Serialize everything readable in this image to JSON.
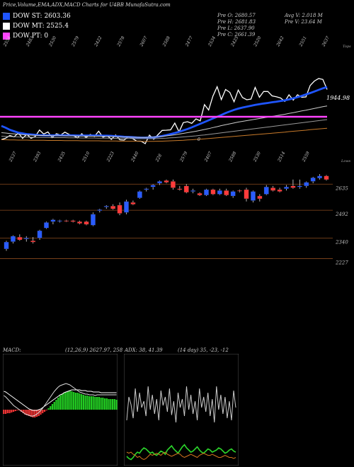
{
  "header": {
    "title": "Price,Volume,EMA,ADX,MACD Charts for U4BB MunafaSutra.com",
    "legend": [
      {
        "label": "DOW ST: 2603.36",
        "color": "#1f55ff"
      },
      {
        "label": "DOW MT: 2525.4",
        "color": "#ffffff"
      },
      {
        "label": "DOW PT: 0",
        "color": "#ff44ff"
      }
    ],
    "stats_left": [
      "Pre O: 2680.57",
      "Pre H: 2681.83",
      "Pre L: 2637.90",
      "Pre C: 2661.39"
    ],
    "stats_right": [
      "Avg V: 2.018 M",
      "Pre V: 23.64 M"
    ]
  },
  "chart_data": [
    {
      "type": "line",
      "panel": "price-ema",
      "right_label": "1944.98",
      "top_tag": "Tops",
      "bottom_tag": "Lows",
      "zero_label": "0",
      "top_tick_labels": [
        "2554",
        "2483",
        "2530",
        "2579",
        "2422",
        "2578",
        "2607",
        "2588",
        "2477",
        "2534",
        "2425",
        "2520",
        "2642",
        "2551",
        "2637"
      ],
      "bottom_tick_labels": [
        "2537",
        "2393",
        "2435",
        "2510",
        "2223",
        "2440",
        "228",
        "2579",
        "2407",
        "2588",
        "2530",
        "2514",
        "2559"
      ],
      "series": [
        {
          "name": "",
          "color": "#ffffff",
          "values": [
            2461,
            2469,
            2484,
            2476,
            2499,
            2468,
            2491,
            2468,
            2479,
            2515,
            2492,
            2504,
            2472,
            2494,
            2486,
            2503,
            2490,
            2483,
            2471,
            2494,
            2473,
            2490,
            2479,
            2508,
            2474,
            2483,
            2462,
            2487,
            2460,
            2458,
            2476,
            2467,
            2452,
            2452,
            2438,
            2486,
            2463,
            2488,
            2513,
            2514,
            2516,
            2554,
            2505,
            2557,
            2562,
            2553,
            2578,
            2567,
            2659,
            2628,
            2707,
            2760,
            2687,
            2744,
            2728,
            2675,
            2741,
            2699,
            2686,
            2690,
            2756,
            2700,
            2733,
            2733,
            2708,
            2703,
            2696,
            2677,
            2714,
            2684,
            2714,
            2700,
            2702,
            2767,
            2792,
            2806,
            2801,
            2744
          ]
        },
        {
          "name": "",
          "color": "#1f55ff",
          "values": [
            2538,
            2528,
            2516,
            2508,
            2500,
            2496,
            2492,
            2490,
            2488,
            2486,
            2485,
            2485,
            2485,
            2485,
            2485,
            2485,
            2485,
            2485,
            2484,
            2484,
            2484,
            2484,
            2484,
            2484,
            2483,
            2483,
            2482,
            2480,
            2479,
            2477,
            2476,
            2475,
            2473,
            2472,
            2472,
            2473,
            2474,
            2477,
            2481,
            2486,
            2492,
            2498,
            2505,
            2513,
            2521,
            2530,
            2540,
            2550,
            2560,
            2570,
            2580,
            2590,
            2600,
            2611,
            2620,
            2629,
            2636,
            2642,
            2647,
            2652,
            2657,
            2661,
            2665,
            2668,
            2672,
            2675,
            2679,
            2683,
            2688,
            2694,
            2701,
            2708,
            2716,
            2724,
            2733,
            2742,
            2751,
            2758
          ]
        },
        {
          "name": "",
          "color": "#cccccc",
          "values": [
            2500,
            2498,
            2495,
            2493,
            2491,
            2489,
            2487,
            2486,
            2485,
            2484,
            2484,
            2484,
            2483,
            2483,
            2483,
            2482,
            2482,
            2482,
            2481,
            2481,
            2481,
            2480,
            2480,
            2480,
            2479,
            2479,
            2478,
            2477,
            2476,
            2475,
            2475,
            2474,
            2474,
            2473,
            2473,
            2474,
            2475,
            2477,
            2479,
            2482,
            2485,
            2488,
            2492,
            2496,
            2500,
            2504,
            2508,
            2513,
            2518,
            2523,
            2529,
            2534,
            2540,
            2545,
            2550,
            2555,
            2560,
            2564,
            2568,
            2572,
            2576,
            2580,
            2584,
            2588,
            2592,
            2596,
            2600,
            2604,
            2609,
            2613,
            2618,
            2623,
            2627,
            2632,
            2637,
            2642,
            2647,
            2651
          ]
        },
        {
          "name": "",
          "color": "#999999",
          "values": [
            2480,
            2479,
            2478,
            2477,
            2476,
            2475,
            2475,
            2474,
            2474,
            2473,
            2473,
            2473,
            2472,
            2472,
            2472,
            2472,
            2471,
            2471,
            2471,
            2470,
            2470,
            2470,
            2470,
            2469,
            2469,
            2469,
            2468,
            2468,
            2468,
            2467,
            2467,
            2467,
            2466,
            2466,
            2466,
            2466,
            2466,
            2467,
            2468,
            2469,
            2471,
            2472,
            2474,
            2476,
            2478,
            2480,
            2482,
            2485,
            2487,
            2490,
            2493,
            2496,
            2499,
            2502,
            2505,
            2508,
            2511,
            2514,
            2517,
            2520,
            2523,
            2526,
            2529,
            2532,
            2535,
            2538,
            2541,
            2544,
            2547,
            2550,
            2553,
            2556,
            2559,
            2562,
            2565,
            2568,
            2571,
            2574
          ]
        },
        {
          "name": "",
          "color": "#c87a2a",
          "values": [
            2460,
            2460,
            2459,
            2459,
            2458,
            2458,
            2458,
            2457,
            2457,
            2457,
            2457,
            2456,
            2456,
            2456,
            2456,
            2455,
            2455,
            2455,
            2455,
            2454,
            2454,
            2454,
            2454,
            2454,
            2453,
            2453,
            2453,
            2453,
            2452,
            2452,
            2452,
            2452,
            2452,
            2451,
            2451,
            2451,
            2451,
            2452,
            2452,
            2453,
            2454,
            2455,
            2456,
            2457,
            2459,
            2460,
            2462,
            2463,
            2465,
            2467,
            2469,
            2471,
            2473,
            2475,
            2477,
            2479,
            2481,
            2483,
            2485,
            2487,
            2489,
            2491,
            2493,
            2495,
            2497,
            2499,
            2501,
            2503,
            2506,
            2508,
            2510,
            2512,
            2514,
            2517,
            2519,
            2521,
            2523,
            2525
          ]
        }
      ],
      "hline": {
        "name": "",
        "color": "#ff44ff",
        "value": 2590
      }
    },
    {
      "type": "candlestick",
      "panel": "candles",
      "level_labels": [
        "2635",
        "2492",
        "2340",
        "2227"
      ],
      "levels": [
        2635,
        2492,
        2340,
        2227
      ],
      "ylim": [
        2140,
        2760
      ],
      "up_color": "#2a5cff",
      "down_color": "#ff3b3b",
      "candles": [
        {
          "o": 2280,
          "h": 2325,
          "l": 2270,
          "c": 2318
        },
        {
          "o": 2320,
          "h": 2355,
          "l": 2310,
          "c": 2350
        },
        {
          "o": 2345,
          "h": 2360,
          "l": 2325,
          "c": 2330
        },
        {
          "o": 2335,
          "h": 2350,
          "l": 2320,
          "c": 2340
        },
        {
          "o": 2325,
          "h": 2345,
          "l": 2310,
          "c": 2318
        },
        {
          "o": 2340,
          "h": 2385,
          "l": 2330,
          "c": 2380
        },
        {
          "o": 2395,
          "h": 2430,
          "l": 2390,
          "c": 2425
        },
        {
          "o": 2430,
          "h": 2445,
          "l": 2415,
          "c": 2440
        },
        {
          "o": 2432,
          "h": 2440,
          "l": 2425,
          "c": 2435
        },
        {
          "o": 2435,
          "h": 2440,
          "l": 2428,
          "c": 2432
        },
        {
          "o": 2435,
          "h": 2440,
          "l": 2425,
          "c": 2430
        },
        {
          "o": 2430,
          "h": 2435,
          "l": 2415,
          "c": 2420
        },
        {
          "o": 2430,
          "h": 2435,
          "l": 2410,
          "c": 2415
        },
        {
          "o": 2410,
          "h": 2480,
          "l": 2405,
          "c": 2470
        },
        {
          "o": 2490,
          "h": 2500,
          "l": 2480,
          "c": 2495
        },
        {
          "o": 2510,
          "h": 2520,
          "l": 2500,
          "c": 2515
        },
        {
          "o": 2515,
          "h": 2525,
          "l": 2495,
          "c": 2500
        },
        {
          "o": 2520,
          "h": 2535,
          "l": 2465,
          "c": 2475
        },
        {
          "o": 2480,
          "h": 2550,
          "l": 2470,
          "c": 2540
        },
        {
          "o": 2535,
          "h": 2545,
          "l": 2520,
          "c": 2525
        },
        {
          "o": 2560,
          "h": 2600,
          "l": 2555,
          "c": 2595
        },
        {
          "o": 2605,
          "h": 2615,
          "l": 2595,
          "c": 2610
        },
        {
          "o": 2620,
          "h": 2635,
          "l": 2605,
          "c": 2630
        },
        {
          "o": 2640,
          "h": 2655,
          "l": 2630,
          "c": 2650
        },
        {
          "o": 2655,
          "h": 2660,
          "l": 2640,
          "c": 2645
        },
        {
          "o": 2650,
          "h": 2660,
          "l": 2605,
          "c": 2615
        },
        {
          "o": 2610,
          "h": 2625,
          "l": 2600,
          "c": 2605
        },
        {
          "o": 2625,
          "h": 2635,
          "l": 2585,
          "c": 2590
        },
        {
          "o": 2595,
          "h": 2610,
          "l": 2585,
          "c": 2600
        },
        {
          "o": 2585,
          "h": 2590,
          "l": 2570,
          "c": 2575
        },
        {
          "o": 2575,
          "h": 2610,
          "l": 2570,
          "c": 2605
        },
        {
          "o": 2605,
          "h": 2610,
          "l": 2575,
          "c": 2580
        },
        {
          "o": 2580,
          "h": 2610,
          "l": 2575,
          "c": 2600
        },
        {
          "o": 2600,
          "h": 2610,
          "l": 2570,
          "c": 2575
        },
        {
          "o": 2570,
          "h": 2600,
          "l": 2560,
          "c": 2595
        },
        {
          "o": 2600,
          "h": 2605,
          "l": 2590,
          "c": 2598
        },
        {
          "o": 2605,
          "h": 2615,
          "l": 2540,
          "c": 2555
        },
        {
          "o": 2545,
          "h": 2600,
          "l": 2535,
          "c": 2595
        },
        {
          "o": 2570,
          "h": 2580,
          "l": 2540,
          "c": 2555
        },
        {
          "o": 2580,
          "h": 2630,
          "l": 2575,
          "c": 2620
        },
        {
          "o": 2615,
          "h": 2625,
          "l": 2595,
          "c": 2600
        },
        {
          "o": 2605,
          "h": 2615,
          "l": 2590,
          "c": 2595
        },
        {
          "o": 2610,
          "h": 2630,
          "l": 2600,
          "c": 2620
        },
        {
          "o": 2625,
          "h": 2660,
          "l": 2610,
          "c": 2615
        },
        {
          "o": 2620,
          "h": 2660,
          "l": 2610,
          "c": 2625
        },
        {
          "o": 2625,
          "h": 2650,
          "l": 2615,
          "c": 2645
        },
        {
          "o": 2650,
          "h": 2675,
          "l": 2640,
          "c": 2670
        },
        {
          "o": 2668,
          "h": 2690,
          "l": 2660,
          "c": 2680
        },
        {
          "o": 2680,
          "h": 2685,
          "l": 2655,
          "c": 2660
        }
      ]
    },
    {
      "type": "bar",
      "panel": "macd",
      "title_left": "MACD:",
      "title_right": "(12,26,9) 2627.97, 258",
      "histogram": [
        -6,
        -6,
        -5,
        -5,
        -4,
        -3,
        -2,
        -1,
        -1,
        -3,
        -5,
        -7,
        -8,
        -9,
        -10,
        -11,
        -11,
        -10,
        -9,
        -7,
        -5,
        -3,
        -1,
        2,
        5,
        8,
        11,
        14,
        17,
        20,
        22,
        24,
        25,
        26,
        27,
        26,
        25,
        24,
        24,
        23,
        22,
        21,
        20,
        20,
        19,
        19,
        19,
        18,
        18,
        18,
        17,
        17,
        16,
        16,
        15,
        15,
        15,
        15,
        14
      ],
      "macd_line": [
        20,
        18,
        15,
        12,
        9,
        6,
        4,
        2,
        0,
        -2,
        -4,
        -6,
        -7,
        -8,
        -9,
        -9,
        -8,
        -6,
        -4,
        -1,
        2,
        6,
        10,
        14,
        18,
        22,
        26,
        29,
        32,
        34,
        35,
        36,
        37,
        36,
        35,
        33,
        31,
        29,
        27,
        25,
        24,
        23,
        22,
        22,
        21,
        21,
        21,
        20,
        21,
        21,
        21,
        21,
        21,
        21,
        21,
        21,
        21,
        21,
        21
      ],
      "signal_line": [
        26,
        25,
        23,
        21,
        19,
        17,
        15,
        13,
        11,
        9,
        7,
        5,
        3,
        1,
        0,
        -1,
        -1,
        -1,
        0,
        1,
        3,
        5,
        7,
        9,
        11,
        13,
        15,
        17,
        19,
        21,
        22,
        24,
        25,
        26,
        27,
        28,
        28,
        28,
        28,
        28,
        27,
        27,
        27,
        26,
        26,
        26,
        25,
        25,
        25,
        25,
        24,
        24,
        24,
        24,
        24,
        24,
        24,
        24,
        24
      ]
    },
    {
      "type": "line",
      "panel": "adx",
      "title_left": "ADX",
      "title_mid": ": 38, 41.39",
      "title_right": "(14 day) 35, -23, -12",
      "series": [
        {
          "name": "",
          "color": "#cccccc",
          "values": [
            40,
            62,
            55,
            42,
            70,
            48,
            66,
            52,
            58,
            44,
            72,
            50,
            64,
            46,
            60,
            40,
            68,
            54,
            62,
            48,
            70,
            45,
            58,
            38,
            66,
            52,
            60,
            44,
            72,
            50,
            64,
            46,
            58,
            40,
            70,
            52,
            62,
            48,
            66,
            44,
            60,
            38,
            72,
            50,
            64,
            46,
            62,
            42,
            58,
            40,
            68,
            52
          ]
        },
        {
          "name": "",
          "color": "#2bd52b",
          "values": [
            6,
            4,
            3,
            5,
            8,
            10,
            9,
            12,
            14,
            13,
            11,
            9,
            10,
            8,
            7,
            9,
            11,
            10,
            8,
            12,
            14,
            16,
            13,
            11,
            9,
            12,
            15,
            17,
            14,
            12,
            10,
            11,
            13,
            15,
            12,
            10,
            9,
            11,
            13,
            12,
            10,
            11,
            12,
            14,
            13,
            11,
            9,
            10,
            12,
            13,
            11,
            10
          ]
        },
        {
          "name": "",
          "color": "#d2741e",
          "values": [
            10,
            9,
            10,
            8,
            7,
            5,
            6,
            4,
            3,
            4,
            6,
            8,
            7,
            8,
            9,
            8,
            7,
            9,
            10,
            8,
            7,
            6,
            7,
            8,
            9,
            8,
            6,
            5,
            6,
            7,
            8,
            7,
            6,
            5,
            7,
            8,
            9,
            8,
            7,
            7,
            8,
            7,
            6,
            5,
            5,
            6,
            7,
            6,
            5,
            5,
            4,
            5
          ]
        }
      ]
    }
  ]
}
